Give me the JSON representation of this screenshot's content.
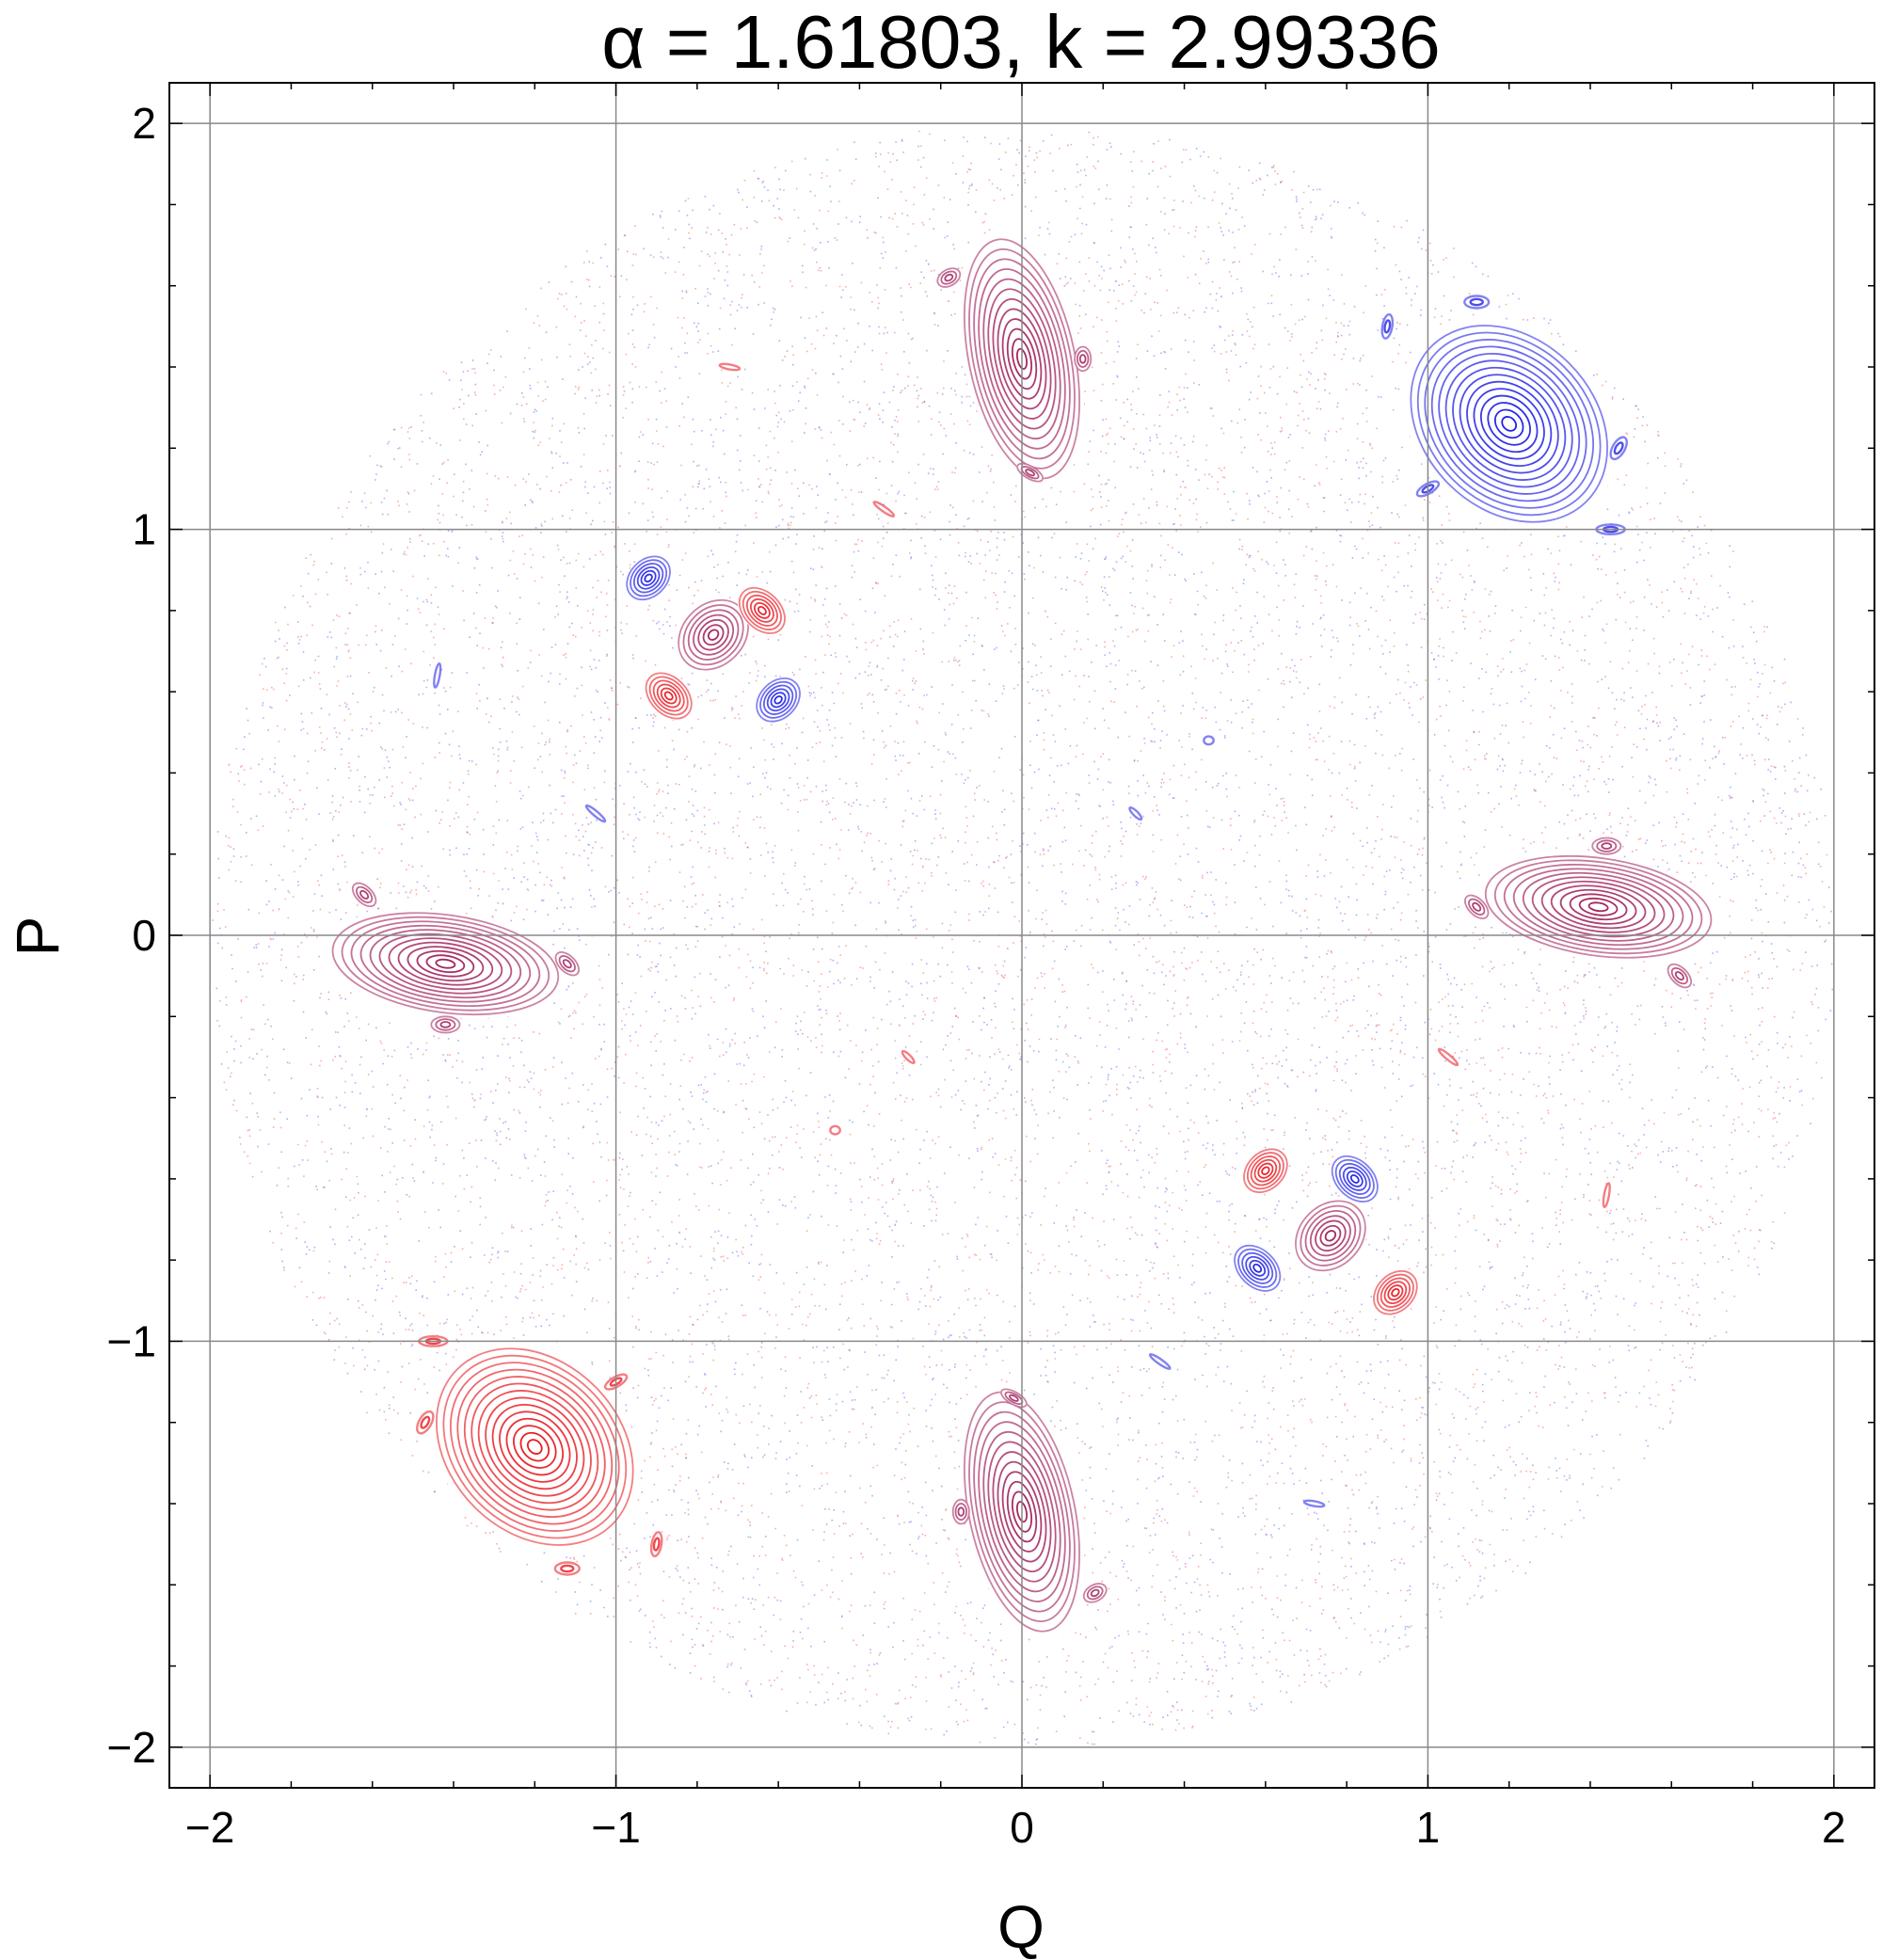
{
  "chart_data": {
    "type": "scatter",
    "title": "α = 1.61803, k = 2.99336",
    "xlabel": "Q",
    "ylabel": "P",
    "xlim": [
      -2.1,
      2.1
    ],
    "ylim": [
      -2.1,
      2.1
    ],
    "x_ticks": [
      -2,
      -1,
      0,
      1,
      2
    ],
    "y_ticks": [
      -2,
      -1,
      0,
      1,
      2
    ],
    "x_tick_labels": [
      "−2",
      "−1",
      "0",
      "1",
      "2"
    ],
    "y_tick_labels": [
      "−2",
      "−1",
      "0",
      "1",
      "2"
    ],
    "grid": true,
    "legend": "none",
    "domain_radius": 2,
    "colors": {
      "red": "#e8141c",
      "blue": "#1c1ce6",
      "purple": "#a01e5a",
      "frame": "#000000",
      "grid": "#888888"
    },
    "islands": [
      {
        "q": 0.0,
        "p": 1.42,
        "a": 0.13,
        "b": 0.3,
        "angle": 12,
        "color": "purple",
        "rings": 12
      },
      {
        "q": 0.0,
        "p": -1.42,
        "a": 0.13,
        "b": 0.3,
        "angle": 12,
        "color": "purple",
        "rings": 12
      },
      {
        "q": 1.42,
        "p": 0.07,
        "a": 0.28,
        "b": 0.12,
        "angle": -8,
        "color": "purple",
        "rings": 12
      },
      {
        "q": -1.42,
        "p": -0.07,
        "a": 0.28,
        "b": 0.12,
        "angle": -8,
        "color": "purple",
        "rings": 12
      },
      {
        "q": 1.2,
        "p": 1.26,
        "a": 0.27,
        "b": 0.21,
        "angle": -45,
        "color": "blue",
        "rings": 14
      },
      {
        "q": -1.2,
        "p": -1.26,
        "a": 0.27,
        "b": 0.21,
        "angle": -45,
        "color": "red",
        "rings": 14
      },
      {
        "q": -0.76,
        "p": 0.74,
        "a": 0.095,
        "b": 0.075,
        "angle": 45,
        "color": "purple",
        "rings": 7
      },
      {
        "q": -0.92,
        "p": 0.88,
        "a": 0.06,
        "b": 0.045,
        "angle": 45,
        "color": "blue",
        "rings": 6
      },
      {
        "q": -0.6,
        "p": 0.58,
        "a": 0.06,
        "b": 0.045,
        "angle": 45,
        "color": "blue",
        "rings": 6
      },
      {
        "q": -0.64,
        "p": 0.8,
        "a": 0.065,
        "b": 0.045,
        "angle": -45,
        "color": "red",
        "rings": 6
      },
      {
        "q": -0.87,
        "p": 0.59,
        "a": 0.065,
        "b": 0.045,
        "angle": -45,
        "color": "red",
        "rings": 6
      },
      {
        "q": 0.76,
        "p": -0.74,
        "a": 0.095,
        "b": 0.075,
        "angle": 45,
        "color": "purple",
        "rings": 7
      },
      {
        "q": 0.92,
        "p": -0.88,
        "a": 0.06,
        "b": 0.045,
        "angle": 45,
        "color": "red",
        "rings": 6
      },
      {
        "q": 0.6,
        "p": -0.58,
        "a": 0.06,
        "b": 0.045,
        "angle": 45,
        "color": "red",
        "rings": 6
      },
      {
        "q": 0.82,
        "p": -0.6,
        "a": 0.065,
        "b": 0.045,
        "angle": -45,
        "color": "blue",
        "rings": 6
      },
      {
        "q": 0.58,
        "p": -0.82,
        "a": 0.065,
        "b": 0.045,
        "angle": -45,
        "color": "blue",
        "rings": 6
      },
      {
        "q": -0.18,
        "p": 1.62,
        "a": 0.03,
        "b": 0.02,
        "angle": 30,
        "color": "purple",
        "rings": 3
      },
      {
        "q": 0.15,
        "p": 1.42,
        "a": 0.02,
        "b": 0.03,
        "angle": 0,
        "color": "purple",
        "rings": 3
      },
      {
        "q": 0.02,
        "p": 1.14,
        "a": 0.035,
        "b": 0.015,
        "angle": -30,
        "color": "purple",
        "rings": 3
      },
      {
        "q": 0.18,
        "p": -1.62,
        "a": 0.03,
        "b": 0.02,
        "angle": 30,
        "color": "purple",
        "rings": 3
      },
      {
        "q": -0.15,
        "p": -1.42,
        "a": 0.02,
        "b": 0.03,
        "angle": 0,
        "color": "purple",
        "rings": 3
      },
      {
        "q": -0.02,
        "p": -1.14,
        "a": 0.035,
        "b": 0.015,
        "angle": -30,
        "color": "purple",
        "rings": 3
      },
      {
        "q": 1.44,
        "p": 0.22,
        "a": 0.035,
        "b": 0.02,
        "angle": 0,
        "color": "purple",
        "rings": 3
      },
      {
        "q": 1.12,
        "p": 0.07,
        "a": 0.035,
        "b": 0.02,
        "angle": -45,
        "color": "purple",
        "rings": 3
      },
      {
        "q": 1.62,
        "p": -0.1,
        "a": 0.035,
        "b": 0.02,
        "angle": -45,
        "color": "purple",
        "rings": 3
      },
      {
        "q": -1.62,
        "p": 0.1,
        "a": 0.035,
        "b": 0.02,
        "angle": -45,
        "color": "purple",
        "rings": 3
      },
      {
        "q": -1.12,
        "p": -0.07,
        "a": 0.035,
        "b": 0.02,
        "angle": -45,
        "color": "purple",
        "rings": 3
      },
      {
        "q": -1.42,
        "p": -0.22,
        "a": 0.035,
        "b": 0.02,
        "angle": 0,
        "color": "purple",
        "rings": 3
      },
      {
        "q": 0.9,
        "p": 1.5,
        "a": 0.03,
        "b": 0.012,
        "angle": 80,
        "color": "blue",
        "rings": 2
      },
      {
        "q": 1.12,
        "p": 1.56,
        "a": 0.03,
        "b": 0.015,
        "angle": 0,
        "color": "blue",
        "rings": 2
      },
      {
        "q": 1.47,
        "p": 1.2,
        "a": 0.015,
        "b": 0.03,
        "angle": -30,
        "color": "blue",
        "rings": 2
      },
      {
        "q": 1.45,
        "p": 1.0,
        "a": 0.035,
        "b": 0.012,
        "angle": 0,
        "color": "blue",
        "rings": 2
      },
      {
        "q": 1.0,
        "p": 1.1,
        "a": 0.03,
        "b": 0.012,
        "angle": 30,
        "color": "blue",
        "rings": 2
      },
      {
        "q": -0.9,
        "p": -1.5,
        "a": 0.03,
        "b": 0.012,
        "angle": 80,
        "color": "red",
        "rings": 2
      },
      {
        "q": -1.12,
        "p": -1.56,
        "a": 0.03,
        "b": 0.015,
        "angle": 0,
        "color": "red",
        "rings": 2
      },
      {
        "q": -1.47,
        "p": -1.2,
        "a": 0.015,
        "b": 0.03,
        "angle": -30,
        "color": "red",
        "rings": 2
      },
      {
        "q": -1.45,
        "p": -1.0,
        "a": 0.035,
        "b": 0.012,
        "angle": 0,
        "color": "red",
        "rings": 2
      },
      {
        "q": -1.0,
        "p": -1.1,
        "a": 0.03,
        "b": 0.012,
        "angle": 30,
        "color": "red",
        "rings": 2
      },
      {
        "q": 0.46,
        "p": 0.48,
        "a": 0.012,
        "b": 0.01,
        "angle": 0,
        "color": "blue",
        "rings": 1
      },
      {
        "q": 0.28,
        "p": 0.3,
        "a": 0.02,
        "b": 0.006,
        "angle": -45,
        "color": "blue",
        "rings": 1
      },
      {
        "q": -0.46,
        "p": -0.48,
        "a": 0.012,
        "b": 0.01,
        "angle": 0,
        "color": "red",
        "rings": 1
      },
      {
        "q": -0.28,
        "p": -0.3,
        "a": 0.02,
        "b": 0.006,
        "angle": -45,
        "color": "red",
        "rings": 1
      },
      {
        "q": -1.05,
        "p": 0.3,
        "a": 0.03,
        "b": 0.006,
        "angle": -40,
        "color": "blue",
        "rings": 1
      },
      {
        "q": -1.44,
        "p": 0.64,
        "a": 0.03,
        "b": 0.006,
        "angle": 80,
        "color": "blue",
        "rings": 1
      },
      {
        "q": 1.05,
        "p": -0.3,
        "a": 0.03,
        "b": 0.006,
        "angle": -40,
        "color": "red",
        "rings": 1
      },
      {
        "q": 1.44,
        "p": -0.64,
        "a": 0.03,
        "b": 0.006,
        "angle": 80,
        "color": "red",
        "rings": 1
      },
      {
        "q": -0.72,
        "p": 1.4,
        "a": 0.025,
        "b": 0.006,
        "angle": -10,
        "color": "red",
        "rings": 1
      },
      {
        "q": -0.34,
        "p": 1.05,
        "a": 0.03,
        "b": 0.006,
        "angle": -35,
        "color": "red",
        "rings": 1
      },
      {
        "q": 0.72,
        "p": -1.4,
        "a": 0.025,
        "b": 0.006,
        "angle": -10,
        "color": "blue",
        "rings": 1
      },
      {
        "q": 0.34,
        "p": -1.05,
        "a": 0.03,
        "b": 0.006,
        "angle": -35,
        "color": "blue",
        "rings": 1
      }
    ]
  }
}
